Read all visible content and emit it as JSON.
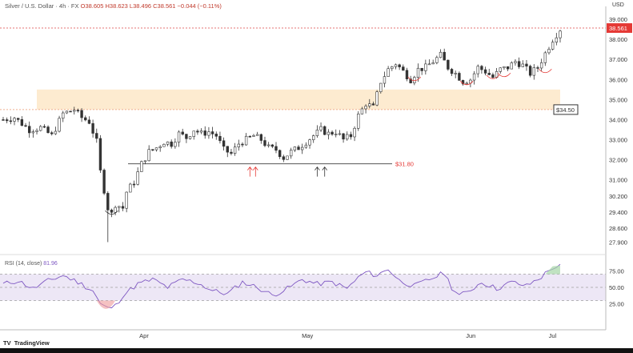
{
  "header": {
    "symbol": "Silver / U.S. Dollar · 4h · FX",
    "ohlc": "O38.605 H38.623 L38.496 C38.561 −0.044 (−0.11%)"
  },
  "currency": "USD",
  "last_price": "38.561",
  "rsi_label": "RSI (14, close)",
  "rsi_value": "81.96",
  "brand": "TradingView",
  "colors": {
    "up": "#26a69a",
    "down": "#ef5350",
    "candle": "#333333",
    "zone": "#fdebd0",
    "rsi": "#7e57c2",
    "accent": "#e53935"
  },
  "chart_data": [
    {
      "type": "candlestick",
      "title": "",
      "y_ticks": [
        "39.000",
        "38.000",
        "37.000",
        "36.000",
        "35.000",
        "34.000",
        "33.000",
        "32.000",
        "31.000",
        "30.200",
        "29.400",
        "28.600",
        "27.900"
      ],
      "x_ticks": [
        "Apr",
        "May",
        "Jun",
        "Jul"
      ],
      "ylim": [
        27.6,
        39.4
      ],
      "grid": false,
      "levels": [
        {
          "label": "$34.50",
          "value": 34.5
        },
        {
          "label": "$31.80",
          "value": 31.8
        }
      ],
      "zone": [
        34.5,
        35.5
      ],
      "path": [
        [
          0,
          34.0
        ],
        [
          3,
          34.1
        ],
        [
          7,
          33.5
        ],
        [
          10,
          33.6
        ],
        [
          13,
          33.2
        ],
        [
          16,
          34.3
        ],
        [
          19,
          34.5
        ],
        [
          21,
          34.1
        ],
        [
          23,
          33.9
        ],
        [
          25,
          32.9
        ],
        [
          26,
          31.4
        ],
        [
          28,
          29.6
        ],
        [
          29,
          29.3
        ],
        [
          30,
          29.8
        ],
        [
          32,
          29.6
        ],
        [
          33,
          30.4
        ],
        [
          35,
          30.9
        ],
        [
          37,
          31.8
        ],
        [
          39,
          32.4
        ],
        [
          41,
          32.6
        ],
        [
          43,
          32.9
        ],
        [
          45,
          32.8
        ],
        [
          47,
          33.3
        ],
        [
          49,
          33.1
        ],
        [
          51,
          33.5
        ],
        [
          53,
          33.3
        ],
        [
          55,
          33.4
        ],
        [
          57,
          33.2
        ],
        [
          59,
          32.5
        ],
        [
          61,
          32.3
        ],
        [
          63,
          32.8
        ],
        [
          65,
          33.0
        ],
        [
          67,
          33.2
        ],
        [
          69,
          33.0
        ],
        [
          71,
          32.6
        ],
        [
          73,
          32.5
        ],
        [
          75,
          32.1
        ],
        [
          77,
          32.4
        ],
        [
          79,
          32.6
        ],
        [
          81,
          32.9
        ],
        [
          83,
          33.2
        ],
        [
          85,
          33.5
        ],
        [
          87,
          33.3
        ],
        [
          89,
          33.4
        ],
        [
          91,
          33.0
        ],
        [
          93,
          33.2
        ],
        [
          95,
          34.2
        ],
        [
          97,
          34.8
        ],
        [
          99,
          34.6
        ],
        [
          101,
          35.9
        ],
        [
          103,
          36.5
        ],
        [
          105,
          36.8
        ],
        [
          107,
          36.4
        ],
        [
          109,
          36.0
        ],
        [
          111,
          36.5
        ],
        [
          113,
          36.6
        ],
        [
          115,
          36.9
        ],
        [
          117,
          37.2
        ],
        [
          119,
          36.6
        ],
        [
          121,
          36.3
        ],
        [
          123,
          35.9
        ],
        [
          125,
          36.0
        ],
        [
          127,
          36.6
        ],
        [
          129,
          36.4
        ],
        [
          131,
          36.1
        ],
        [
          133,
          36.5
        ],
        [
          135,
          36.6
        ],
        [
          137,
          36.9
        ],
        [
          139,
          36.7
        ],
        [
          141,
          36.3
        ],
        [
          143,
          36.6
        ],
        [
          145,
          37.3
        ],
        [
          147,
          38.0
        ],
        [
          149,
          38.5
        ]
      ]
    },
    {
      "type": "line",
      "title": "RSI (14, close)",
      "y_ticks": [
        "75.00",
        "50.00",
        "25.00"
      ],
      "levels": [
        70,
        50,
        30
      ],
      "ylim": [
        10,
        90
      ],
      "path": [
        [
          0,
          55
        ],
        [
          4,
          60
        ],
        [
          8,
          48
        ],
        [
          12,
          60
        ],
        [
          16,
          68
        ],
        [
          20,
          58
        ],
        [
          24,
          45
        ],
        [
          26,
          25
        ],
        [
          28,
          18
        ],
        [
          30,
          22
        ],
        [
          32,
          38
        ],
        [
          36,
          55
        ],
        [
          40,
          62
        ],
        [
          44,
          50
        ],
        [
          48,
          62
        ],
        [
          52,
          57
        ],
        [
          56,
          45
        ],
        [
          60,
          40
        ],
        [
          64,
          58
        ],
        [
          68,
          50
        ],
        [
          72,
          38
        ],
        [
          76,
          48
        ],
        [
          80,
          62
        ],
        [
          84,
          55
        ],
        [
          88,
          58
        ],
        [
          92,
          48
        ],
        [
          95,
          65
        ],
        [
          97,
          73
        ],
        [
          100,
          68
        ],
        [
          103,
          78
        ],
        [
          106,
          60
        ],
        [
          110,
          52
        ],
        [
          114,
          62
        ],
        [
          118,
          72
        ],
        [
          120,
          50
        ],
        [
          122,
          38
        ],
        [
          124,
          42
        ],
        [
          128,
          58
        ],
        [
          132,
          48
        ],
        [
          136,
          58
        ],
        [
          140,
          52
        ],
        [
          144,
          66
        ],
        [
          147,
          80
        ],
        [
          149,
          82
        ]
      ]
    }
  ]
}
